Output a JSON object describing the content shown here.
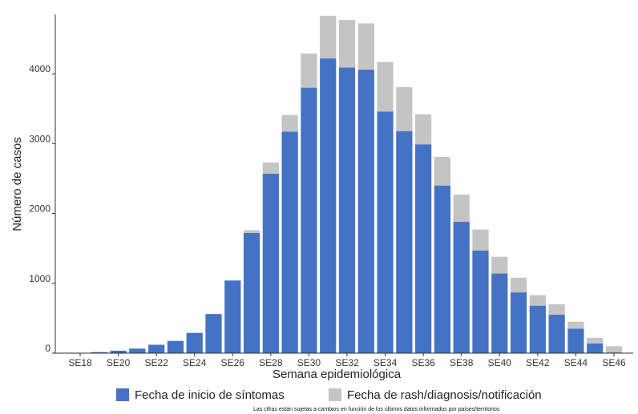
{
  "chart_data": {
    "type": "bar",
    "stacked": true,
    "xlabel": "Semana epidemiológica",
    "ylabel": "Número de casos",
    "ylim": [
      0,
      4850
    ],
    "yticks": [
      0,
      1000,
      2000,
      3000,
      4000
    ],
    "ytick_labels": [
      "0",
      "1000",
      "2000",
      "3000",
      "4000"
    ],
    "categories": [
      "SE18",
      "SE19",
      "SE20",
      "SE21",
      "SE22",
      "SE23",
      "SE24",
      "SE25",
      "SE26",
      "SE27",
      "SE28",
      "SE29",
      "SE30",
      "SE31",
      "SE32",
      "SE33",
      "SE34",
      "SE35",
      "SE36",
      "SE37",
      "SE38",
      "SE39",
      "SE40",
      "SE41",
      "SE42",
      "SE43",
      "SE44",
      "SE45",
      "SE46"
    ],
    "xtick_labels": [
      "SE18",
      "SE20",
      "SE22",
      "SE24",
      "SE26",
      "SE28",
      "SE30",
      "SE32",
      "SE34",
      "SE36",
      "SE38",
      "SE40",
      "SE42",
      "SE44",
      "SE46"
    ],
    "series": [
      {
        "name": "Fecha de inicio de síntomas",
        "color": "#4472c4",
        "values": [
          5,
          15,
          35,
          65,
          120,
          175,
          290,
          560,
          1040,
          1720,
          2570,
          3170,
          3800,
          4220,
          4090,
          4060,
          3460,
          3180,
          2990,
          2400,
          1880,
          1470,
          1140,
          870,
          680,
          550,
          350,
          140,
          10
        ]
      },
      {
        "name": "Fecha de rash/diagnosis/notificación",
        "color": "#c4c4c4",
        "values": [
          0,
          0,
          0,
          0,
          0,
          0,
          0,
          0,
          0,
          40,
          160,
          240,
          490,
          610,
          680,
          660,
          710,
          630,
          430,
          410,
          390,
          300,
          240,
          210,
          150,
          150,
          100,
          80,
          90
        ]
      }
    ],
    "legend_position": "bottom",
    "grid": false
  },
  "footnote": "Las cifras están sujetas a cambios en función de los últimos datos informados por países/territorios"
}
